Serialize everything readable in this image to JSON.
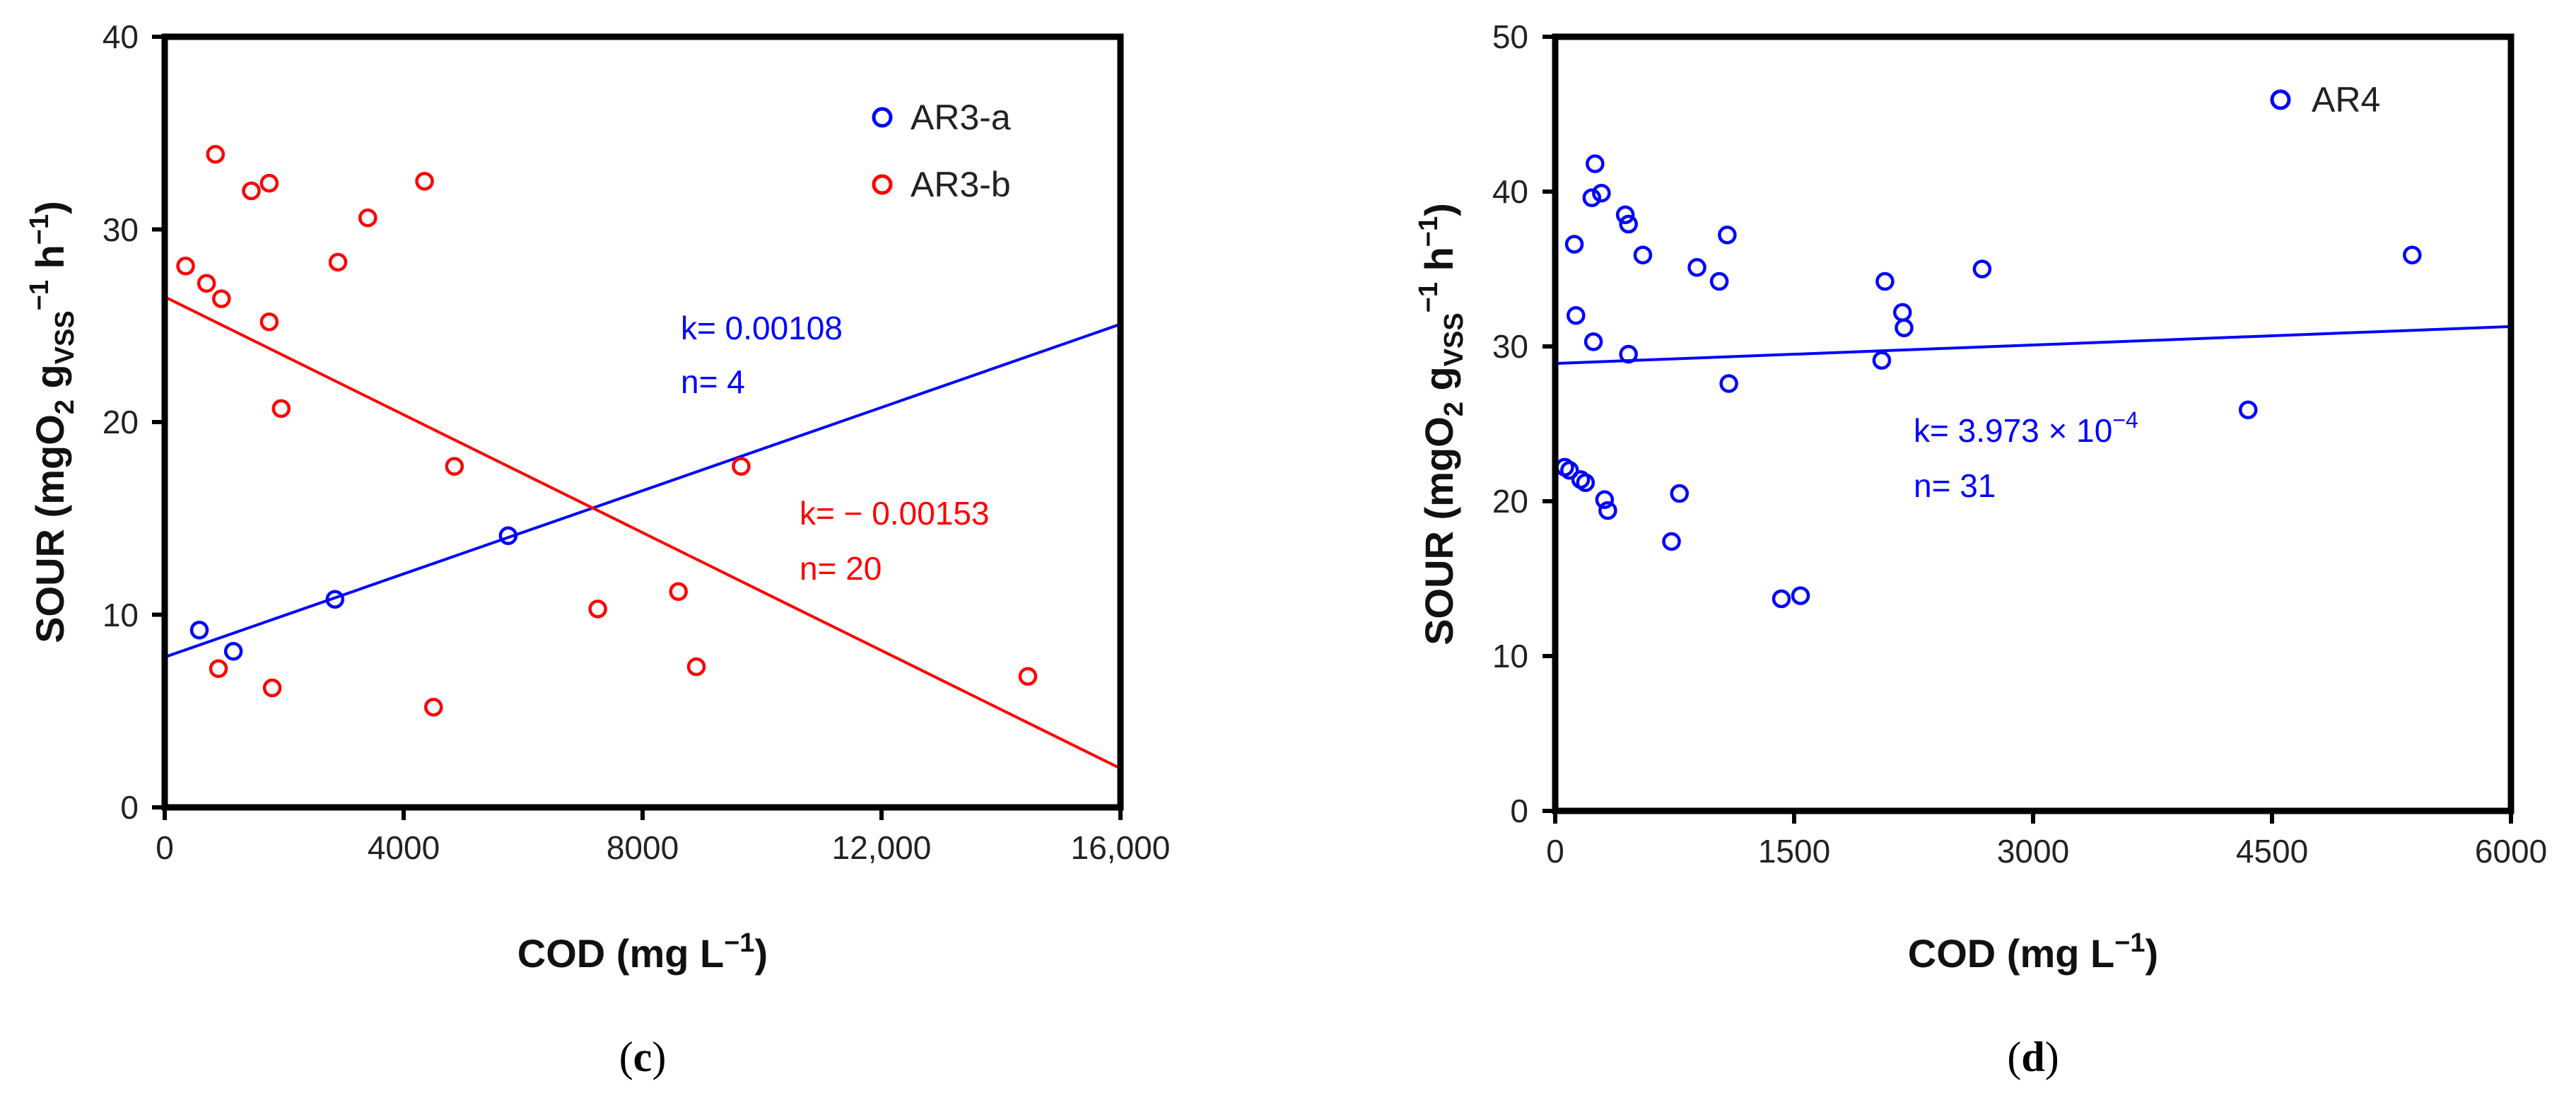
{
  "chart_data": [
    {
      "type": "scatter",
      "panel_label": "c",
      "xlabel": "COD (mg L",
      "xlabel_sup": "−1",
      "xlabel_end": ")",
      "ylabel": "SOUR (mgO",
      "ylabel_sub1": "2",
      "ylabel_g": " g",
      "ylabel_sub2": "VSS",
      "ylabel_sup1": "−1",
      "ylabel_h": " h",
      "ylabel_sup2": "−1",
      "ylabel_end": ")",
      "xlim": [
        0,
        16000
      ],
      "ylim": [
        0,
        40
      ],
      "xticks": [
        0,
        4000,
        8000,
        12000,
        16000
      ],
      "xtick_labels": [
        "0",
        "4000",
        "8000",
        "12,000",
        "16,000"
      ],
      "yticks": [
        0,
        10,
        20,
        30,
        40
      ],
      "ytick_labels": [
        "0",
        "10",
        "20",
        "30",
        "40"
      ],
      "legend_position": "top-right",
      "series": [
        {
          "name": "AR3-a",
          "color": "#0000ff",
          "points": [
            [
              580,
              9.2
            ],
            [
              1150,
              8.1
            ],
            [
              2850,
              10.8
            ],
            [
              5750,
              14.1
            ]
          ],
          "fit": {
            "intercept": 7.8,
            "slope": 0.00108,
            "x_range": [
              0,
              16000
            ]
          },
          "annotation": {
            "k_text": "k= 0.00108",
            "n_text": "n= 4"
          }
        },
        {
          "name": "AR3-b",
          "color": "#ff0000",
          "points": [
            [
              350,
              28.1
            ],
            [
              700,
              27.2
            ],
            [
              850,
              33.9
            ],
            [
              950,
              26.4
            ],
            [
              1450,
              32.0
            ],
            [
              1750,
              32.4
            ],
            [
              1750,
              25.2
            ],
            [
              1950,
              20.7
            ],
            [
              2900,
              28.3
            ],
            [
              3400,
              30.6
            ],
            [
              4350,
              32.5
            ],
            [
              4850,
              17.7
            ],
            [
              7250,
              10.3
            ],
            [
              8600,
              11.2
            ],
            [
              8900,
              7.3
            ],
            [
              9650,
              17.7
            ],
            [
              14450,
              6.8
            ],
            [
              900,
              7.2
            ],
            [
              1800,
              6.2
            ],
            [
              4500,
              5.2
            ]
          ],
          "fit": {
            "intercept": 26.5,
            "slope": -0.00153,
            "x_range": [
              0,
              16000
            ]
          },
          "annotation": {
            "k_text": "k= − 0.00153",
            "n_text": "n= 20"
          }
        }
      ]
    },
    {
      "type": "scatter",
      "panel_label": "d",
      "xlabel": "COD (mg L",
      "xlabel_sup": "−1",
      "xlabel_end": ")",
      "ylabel": "SOUR (mgO",
      "ylabel_sub1": "2",
      "ylabel_g": " g",
      "ylabel_sub2": "VSS",
      "ylabel_sup1": "−1",
      "ylabel_h": " h",
      "ylabel_sup2": "−1",
      "ylabel_end": ")",
      "xlim": [
        0,
        6000
      ],
      "ylim": [
        0,
        50
      ],
      "xticks": [
        0,
        1500,
        3000,
        4500,
        6000
      ],
      "xtick_labels": [
        "0",
        "1500",
        "3000",
        "4500",
        "6000"
      ],
      "yticks": [
        0,
        10,
        20,
        30,
        40,
        50
      ],
      "ytick_labels": [
        "0",
        "10",
        "20",
        "30",
        "40",
        "50"
      ],
      "legend_position": "top-right",
      "series": [
        {
          "name": "AR4",
          "color": "#0000ff",
          "points": [
            [
              60,
              22.2
            ],
            [
              90,
              22.0
            ],
            [
              120,
              36.6
            ],
            [
              130,
              32.0
            ],
            [
              160,
              21.4
            ],
            [
              190,
              21.2
            ],
            [
              230,
              39.6
            ],
            [
              240,
              30.3
            ],
            [
              250,
              41.8
            ],
            [
              290,
              39.9
            ],
            [
              310,
              20.1
            ],
            [
              330,
              19.4
            ],
            [
              440,
              38.5
            ],
            [
              460,
              37.9
            ],
            [
              460,
              29.5
            ],
            [
              550,
              35.9
            ],
            [
              730,
              17.4
            ],
            [
              780,
              20.5
            ],
            [
              890,
              35.1
            ],
            [
              1030,
              34.2
            ],
            [
              1080,
              37.2
            ],
            [
              1090,
              27.6
            ],
            [
              1420,
              13.7
            ],
            [
              1540,
              13.9
            ],
            [
              2050,
              29.1
            ],
            [
              2070,
              34.2
            ],
            [
              2180,
              32.2
            ],
            [
              2190,
              31.2
            ],
            [
              2680,
              35.0
            ],
            [
              4350,
              25.9
            ],
            [
              5380,
              35.9
            ]
          ],
          "fit": {
            "intercept": 28.9,
            "slope": 0.0003973,
            "x_range": [
              0,
              6000
            ]
          },
          "annotation": {
            "k_text": "k= 3.973 × 10",
            "k_sup": "−4",
            "n_text": "n= 31"
          }
        }
      ]
    }
  ]
}
